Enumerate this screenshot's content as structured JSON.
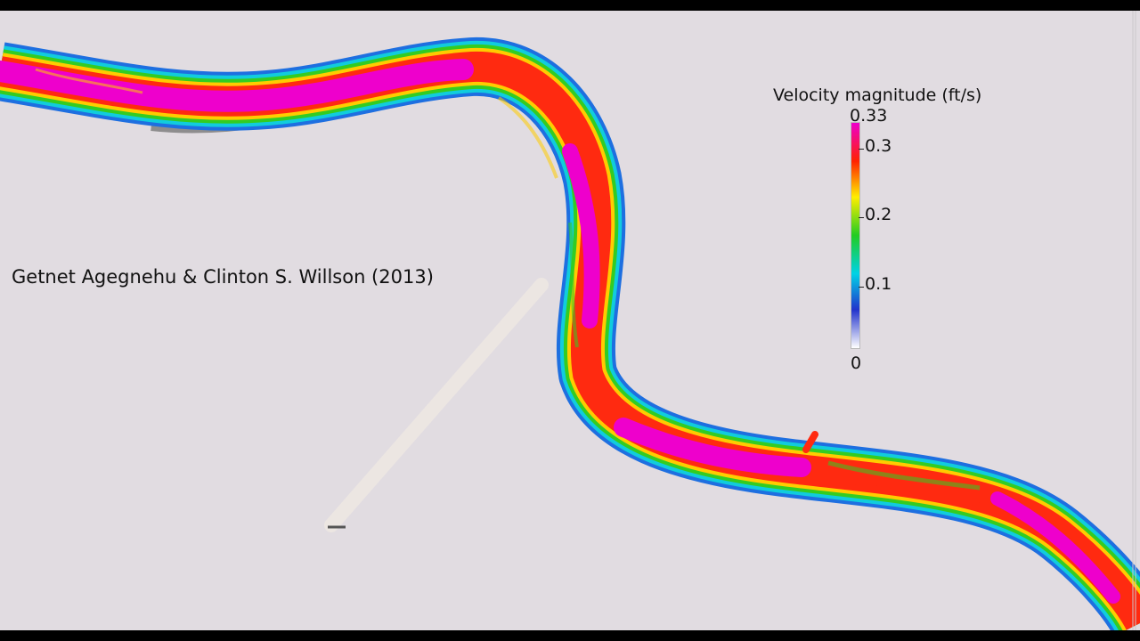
{
  "credit_text": "Getnet Agegnehu & Clinton S. Willson (2013)",
  "legend": {
    "title": "Velocity magnitude (ft/s)",
    "max_label": "0.33",
    "ticks": [
      "0.3",
      "0.2",
      "0.1"
    ],
    "min_label": "0",
    "range": [
      0,
      0.33
    ],
    "colors": [
      "#ffffff",
      "#2233cc",
      "#00d2e6",
      "#22cc22",
      "#ffee00",
      "#ff2200",
      "#ee00cc"
    ]
  }
}
